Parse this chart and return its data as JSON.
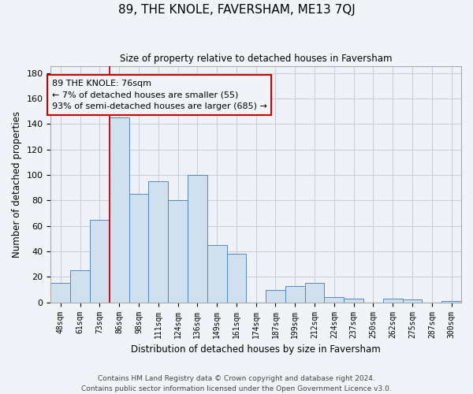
{
  "title": "89, THE KNOLE, FAVERSHAM, ME13 7QJ",
  "subtitle": "Size of property relative to detached houses in Faversham",
  "xlabel": "Distribution of detached houses by size in Faversham",
  "ylabel": "Number of detached properties",
  "bin_labels": [
    "48sqm",
    "61sqm",
    "73sqm",
    "86sqm",
    "98sqm",
    "111sqm",
    "124sqm",
    "136sqm",
    "149sqm",
    "161sqm",
    "174sqm",
    "187sqm",
    "199sqm",
    "212sqm",
    "224sqm",
    "237sqm",
    "250sqm",
    "262sqm",
    "275sqm",
    "287sqm",
    "300sqm"
  ],
  "bar_values": [
    15,
    25,
    65,
    145,
    85,
    95,
    80,
    100,
    45,
    38,
    0,
    10,
    13,
    15,
    4,
    3,
    0,
    3,
    2,
    0,
    1
  ],
  "bar_color": "#d0e0ee",
  "bar_edge_color": "#5588bb",
  "property_line_x": 3,
  "annotation_title": "89 THE KNOLE: 76sqm",
  "annotation_line1": "← 7% of detached houses are smaller (55)",
  "annotation_line2": "93% of semi-detached houses are larger (685) →",
  "annotation_box_edge": "#cc0000",
  "property_line_color": "#cc0000",
  "ylim": [
    0,
    185
  ],
  "yticks": [
    0,
    20,
    40,
    60,
    80,
    100,
    120,
    140,
    160,
    180
  ],
  "footer_line1": "Contains HM Land Registry data © Crown copyright and database right 2024.",
  "footer_line2": "Contains public sector information licensed under the Open Government Licence v3.0.",
  "background_color": "#f0f4f8",
  "plot_bg_color": "#eef2f8",
  "grid_color": "#c8d0dc"
}
